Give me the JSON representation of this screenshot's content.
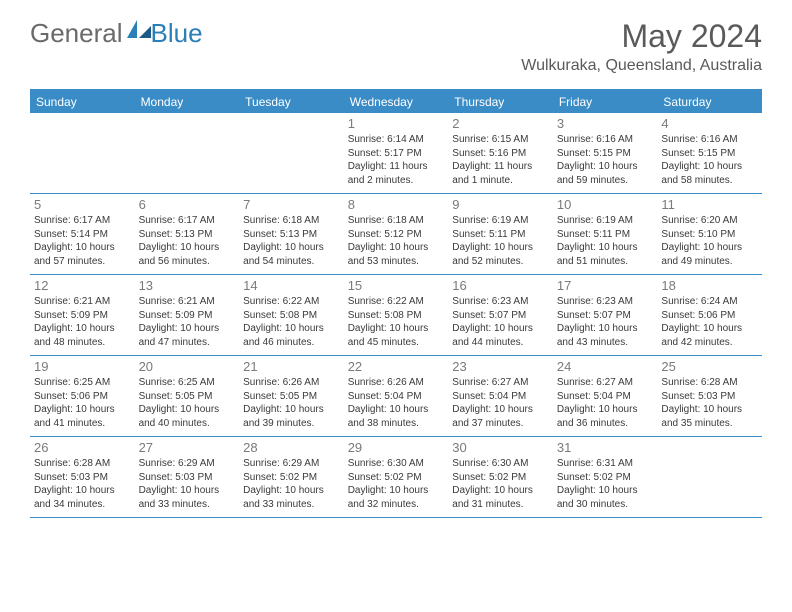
{
  "logo": {
    "part1": "General",
    "part2": "Blue"
  },
  "title": "May 2024",
  "location": "Wulkuraka, Queensland, Australia",
  "colors": {
    "header_bg": "#3a8cc7",
    "header_text": "#ffffff",
    "border": "#3a8cc7",
    "daynum": "#7a7a7a",
    "info_text": "#3a3a3a",
    "title_text": "#5a5a5a",
    "logo_gray": "#6a6a6a",
    "logo_blue": "#2a7fb8",
    "background": "#ffffff"
  },
  "day_headers": [
    "Sunday",
    "Monday",
    "Tuesday",
    "Wednesday",
    "Thursday",
    "Friday",
    "Saturday"
  ],
  "weeks": [
    [
      null,
      null,
      null,
      {
        "n": "1",
        "sr": "Sunrise: 6:14 AM",
        "ss": "Sunset: 5:17 PM",
        "dl": "Daylight: 11 hours and 2 minutes."
      },
      {
        "n": "2",
        "sr": "Sunrise: 6:15 AM",
        "ss": "Sunset: 5:16 PM",
        "dl": "Daylight: 11 hours and 1 minute."
      },
      {
        "n": "3",
        "sr": "Sunrise: 6:16 AM",
        "ss": "Sunset: 5:15 PM",
        "dl": "Daylight: 10 hours and 59 minutes."
      },
      {
        "n": "4",
        "sr": "Sunrise: 6:16 AM",
        "ss": "Sunset: 5:15 PM",
        "dl": "Daylight: 10 hours and 58 minutes."
      }
    ],
    [
      {
        "n": "5",
        "sr": "Sunrise: 6:17 AM",
        "ss": "Sunset: 5:14 PM",
        "dl": "Daylight: 10 hours and 57 minutes."
      },
      {
        "n": "6",
        "sr": "Sunrise: 6:17 AM",
        "ss": "Sunset: 5:13 PM",
        "dl": "Daylight: 10 hours and 56 minutes."
      },
      {
        "n": "7",
        "sr": "Sunrise: 6:18 AM",
        "ss": "Sunset: 5:13 PM",
        "dl": "Daylight: 10 hours and 54 minutes."
      },
      {
        "n": "8",
        "sr": "Sunrise: 6:18 AM",
        "ss": "Sunset: 5:12 PM",
        "dl": "Daylight: 10 hours and 53 minutes."
      },
      {
        "n": "9",
        "sr": "Sunrise: 6:19 AM",
        "ss": "Sunset: 5:11 PM",
        "dl": "Daylight: 10 hours and 52 minutes."
      },
      {
        "n": "10",
        "sr": "Sunrise: 6:19 AM",
        "ss": "Sunset: 5:11 PM",
        "dl": "Daylight: 10 hours and 51 minutes."
      },
      {
        "n": "11",
        "sr": "Sunrise: 6:20 AM",
        "ss": "Sunset: 5:10 PM",
        "dl": "Daylight: 10 hours and 49 minutes."
      }
    ],
    [
      {
        "n": "12",
        "sr": "Sunrise: 6:21 AM",
        "ss": "Sunset: 5:09 PM",
        "dl": "Daylight: 10 hours and 48 minutes."
      },
      {
        "n": "13",
        "sr": "Sunrise: 6:21 AM",
        "ss": "Sunset: 5:09 PM",
        "dl": "Daylight: 10 hours and 47 minutes."
      },
      {
        "n": "14",
        "sr": "Sunrise: 6:22 AM",
        "ss": "Sunset: 5:08 PM",
        "dl": "Daylight: 10 hours and 46 minutes."
      },
      {
        "n": "15",
        "sr": "Sunrise: 6:22 AM",
        "ss": "Sunset: 5:08 PM",
        "dl": "Daylight: 10 hours and 45 minutes."
      },
      {
        "n": "16",
        "sr": "Sunrise: 6:23 AM",
        "ss": "Sunset: 5:07 PM",
        "dl": "Daylight: 10 hours and 44 minutes."
      },
      {
        "n": "17",
        "sr": "Sunrise: 6:23 AM",
        "ss": "Sunset: 5:07 PM",
        "dl": "Daylight: 10 hours and 43 minutes."
      },
      {
        "n": "18",
        "sr": "Sunrise: 6:24 AM",
        "ss": "Sunset: 5:06 PM",
        "dl": "Daylight: 10 hours and 42 minutes."
      }
    ],
    [
      {
        "n": "19",
        "sr": "Sunrise: 6:25 AM",
        "ss": "Sunset: 5:06 PM",
        "dl": "Daylight: 10 hours and 41 minutes."
      },
      {
        "n": "20",
        "sr": "Sunrise: 6:25 AM",
        "ss": "Sunset: 5:05 PM",
        "dl": "Daylight: 10 hours and 40 minutes."
      },
      {
        "n": "21",
        "sr": "Sunrise: 6:26 AM",
        "ss": "Sunset: 5:05 PM",
        "dl": "Daylight: 10 hours and 39 minutes."
      },
      {
        "n": "22",
        "sr": "Sunrise: 6:26 AM",
        "ss": "Sunset: 5:04 PM",
        "dl": "Daylight: 10 hours and 38 minutes."
      },
      {
        "n": "23",
        "sr": "Sunrise: 6:27 AM",
        "ss": "Sunset: 5:04 PM",
        "dl": "Daylight: 10 hours and 37 minutes."
      },
      {
        "n": "24",
        "sr": "Sunrise: 6:27 AM",
        "ss": "Sunset: 5:04 PM",
        "dl": "Daylight: 10 hours and 36 minutes."
      },
      {
        "n": "25",
        "sr": "Sunrise: 6:28 AM",
        "ss": "Sunset: 5:03 PM",
        "dl": "Daylight: 10 hours and 35 minutes."
      }
    ],
    [
      {
        "n": "26",
        "sr": "Sunrise: 6:28 AM",
        "ss": "Sunset: 5:03 PM",
        "dl": "Daylight: 10 hours and 34 minutes."
      },
      {
        "n": "27",
        "sr": "Sunrise: 6:29 AM",
        "ss": "Sunset: 5:03 PM",
        "dl": "Daylight: 10 hours and 33 minutes."
      },
      {
        "n": "28",
        "sr": "Sunrise: 6:29 AM",
        "ss": "Sunset: 5:02 PM",
        "dl": "Daylight: 10 hours and 33 minutes."
      },
      {
        "n": "29",
        "sr": "Sunrise: 6:30 AM",
        "ss": "Sunset: 5:02 PM",
        "dl": "Daylight: 10 hours and 32 minutes."
      },
      {
        "n": "30",
        "sr": "Sunrise: 6:30 AM",
        "ss": "Sunset: 5:02 PM",
        "dl": "Daylight: 10 hours and 31 minutes."
      },
      {
        "n": "31",
        "sr": "Sunrise: 6:31 AM",
        "ss": "Sunset: 5:02 PM",
        "dl": "Daylight: 10 hours and 30 minutes."
      },
      null
    ]
  ]
}
